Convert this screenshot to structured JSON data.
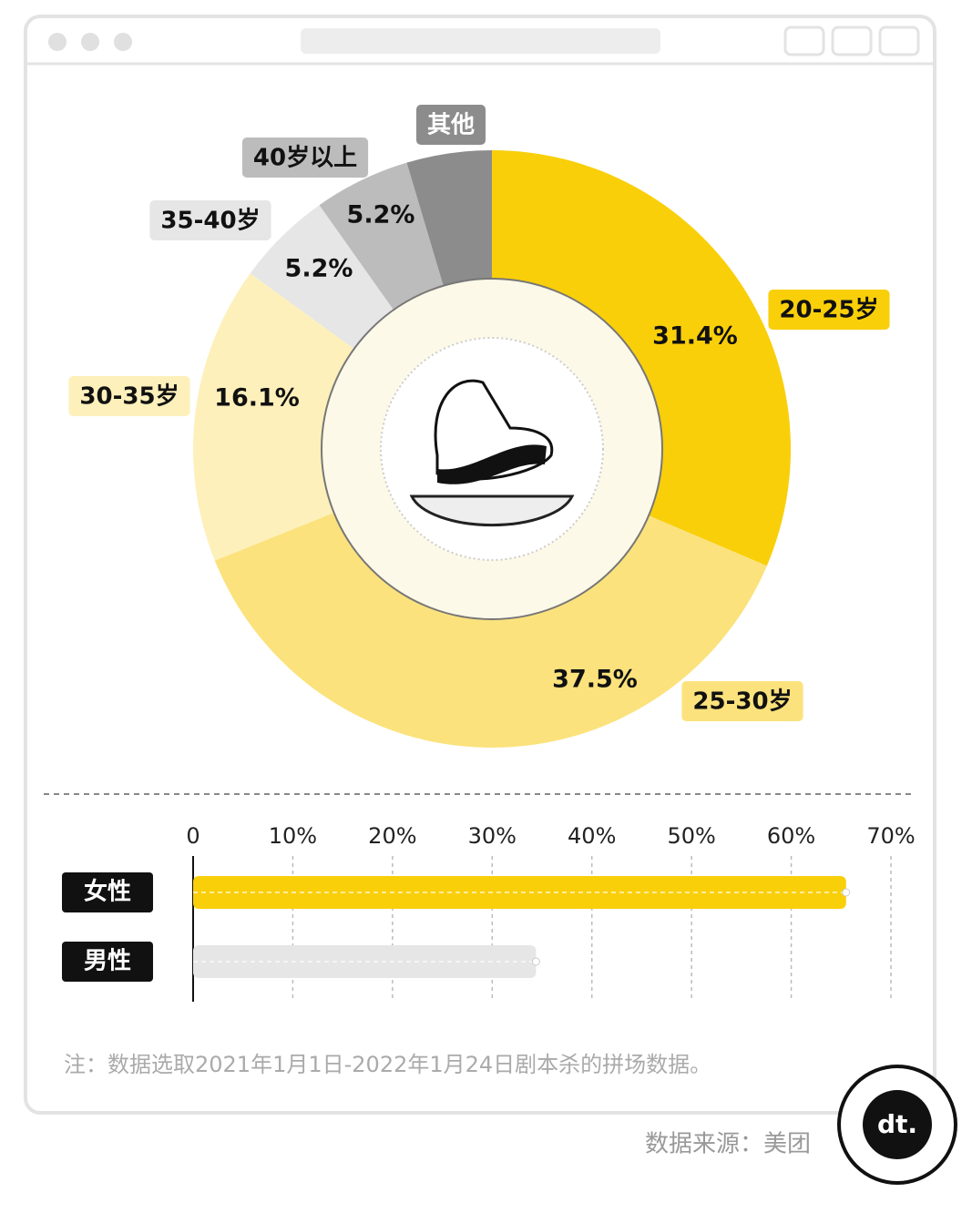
{
  "chart_data": [
    {
      "type": "pie",
      "donut": true,
      "categories": [
        "20-25岁",
        "25-30岁",
        "30-35岁",
        "35-40岁",
        "40岁以上",
        "其他"
      ],
      "values": [
        31.4,
        37.5,
        16.1,
        5.2,
        5.2,
        4.6
      ],
      "value_labels": [
        "31.4%",
        "37.5%",
        "16.1%",
        "5.2%",
        "5.2%",
        null
      ],
      "colors": [
        "#f9cf0a",
        "#fbe27c",
        "#fdf0bb",
        "#e6e6e6",
        "#bcbcbc",
        "#8c8c8c"
      ]
    },
    {
      "type": "hbar",
      "categories": [
        "女性",
        "男性"
      ],
      "values": [
        65.5,
        34.4
      ],
      "colors": [
        "#f9cf0a",
        "#e6e6e6"
      ],
      "xlim": [
        0,
        70
      ],
      "xticks": [
        0,
        {
          "value": 10,
          "label": "10%"
        },
        {
          "value": 20,
          "label": "20%"
        },
        {
          "value": 30,
          "label": "30%"
        },
        {
          "value": 40,
          "label": "40%"
        },
        {
          "value": 50,
          "label": "50%"
        },
        {
          "value": 60,
          "label": "60%"
        },
        {
          "value": 70,
          "label": "70%"
        }
      ],
      "grid": true
    }
  ],
  "note": "注：数据选取2021年1月1日-2022年1月24日剧本杀的拼场数据。",
  "source": "数据来源：美团",
  "logo": "dt."
}
